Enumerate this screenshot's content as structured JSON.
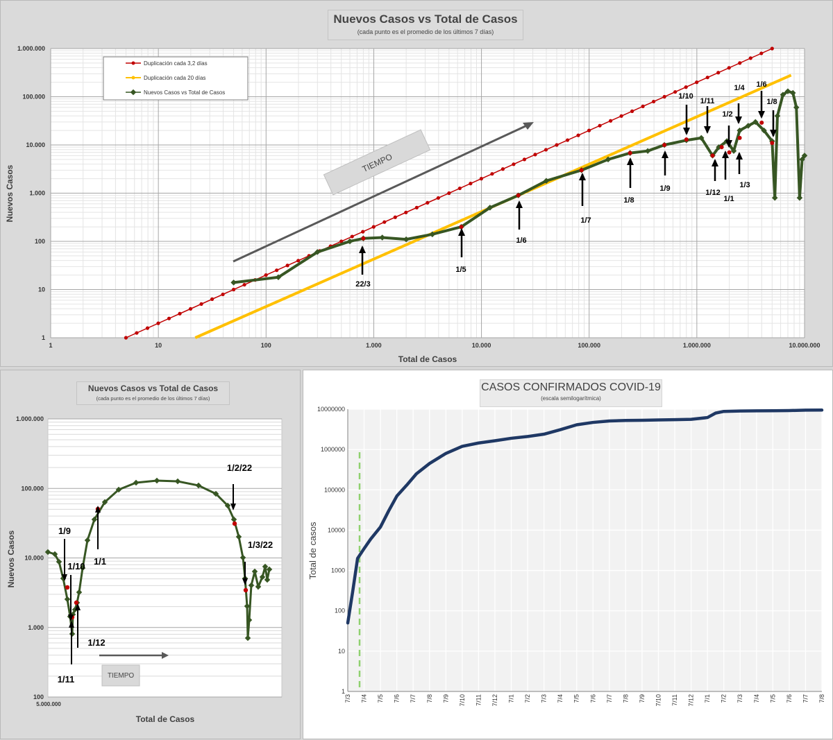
{
  "chart_data": [
    {
      "type": "line",
      "title": "Nuevos Casos vs Total de Casos",
      "subtitle": "(cada punto es el promedio de los últimos 7 días)",
      "xlabel": "Total de Casos",
      "ylabel": "Nuevos Casos",
      "xscale": "log",
      "yscale": "log",
      "xlim": [
        1,
        10000000
      ],
      "ylim": [
        1,
        1000000
      ],
      "x_ticks": [
        "1",
        "10",
        "100",
        "1.000",
        "10.000",
        "100.000",
        "1.000.000",
        "10.000.000"
      ],
      "y_ticks": [
        "1",
        "10",
        "100",
        "1.000",
        "10.000",
        "100.000",
        "1.000.000"
      ],
      "legend_position": "top-left",
      "series": [
        {
          "name": "Duplicación cada 3,2 días",
          "color": "#c00000",
          "x": [
            5,
            5000000
          ],
          "y": [
            1,
            1000000
          ]
        },
        {
          "name": "Duplicación cada 20 días",
          "color": "#ffc000",
          "x": [
            22,
            7500000
          ],
          "y": [
            1,
            280000
          ]
        },
        {
          "name": "Nuevos Casos vs Total de Casos",
          "color": "#375623",
          "x": [
            50,
            130,
            300,
            600,
            800,
            1200,
            2000,
            3500,
            6500,
            12000,
            22000,
            40000,
            85000,
            150000,
            240000,
            350000,
            500000,
            800000,
            1100000,
            1400000,
            1600000,
            1900000,
            2200000,
            2500000,
            3000000,
            3500000,
            4200000,
            5000000,
            5300000,
            5600000,
            6300000,
            7000000,
            7800000,
            8400000,
            9000000,
            9500000,
            10000000
          ],
          "y": [
            14,
            18,
            60,
            100,
            115,
            120,
            110,
            140,
            200,
            500,
            900,
            1800,
            3000,
            5000,
            6800,
            7500,
            10000,
            12500,
            14000,
            6000,
            9000,
            12000,
            7500,
            20000,
            25000,
            30000,
            20000,
            12000,
            800,
            40000,
            110000,
            130000,
            120000,
            60000,
            800,
            5000,
            6000
          ]
        },
        {
          "name": "",
          "color": "#375623",
          "x": [
            5000000
          ],
          "y": [
            500000
          ]
        }
      ],
      "annotations": [
        "22/3",
        "1/5",
        "1/6",
        "1/7",
        "1/8",
        "1/9",
        "1/10",
        "1/11",
        "1/12",
        "1/1",
        "1/2",
        "1/3",
        "1/4",
        "1/6",
        "1/8",
        "TIEMPO"
      ]
    },
    {
      "type": "line",
      "title": "Nuevos Casos vs Total de Casos",
      "subtitle": "(cada punto es el promedio de los últimos 7 días)",
      "xlabel": "Total de Casos",
      "ylabel": "Nuevos Casos",
      "yscale": "log",
      "ylim": [
        100,
        1000000
      ],
      "x_ticks": [
        "5.000.000"
      ],
      "y_ticks": [
        "100",
        "1.000",
        "10.000",
        "100.000",
        "1.000.000"
      ],
      "annotations": [
        "1/9",
        "1/10",
        "1/11",
        "1/12",
        "1/1",
        "1/2/22",
        "1/3/22",
        "TIEMPO"
      ]
    },
    {
      "type": "line",
      "title": "CASOS CONFIRMADOS COVID-19",
      "subtitle": "(escala semilogarítmica)",
      "ylabel": "Total de casos",
      "yscale": "log",
      "ylim": [
        1,
        10000000
      ],
      "y_ticks": [
        "1",
        "10",
        "100",
        "1000",
        "10000",
        "100000",
        "1000000",
        "10000000"
      ],
      "x_ticks": [
        "7/3",
        "7/4",
        "7/5",
        "7/6",
        "7/7",
        "7/8",
        "7/9",
        "7/10",
        "7/11",
        "7/12",
        "7/1",
        "7/2",
        "7/3",
        "7/4",
        "7/5",
        "7/6",
        "7/7",
        "7/8",
        "7/9",
        "7/10",
        "7/11",
        "7/12",
        "7/1",
        "7/2",
        "7/3",
        "7/4",
        "7/5",
        "7/6",
        "7/7",
        "7/8"
      ],
      "series": [
        {
          "name": "",
          "color": "#1f3864",
          "x": [
            0,
            0.3,
            0.6,
            1.0,
            1.4,
            2,
            2.5,
            3,
            3.6,
            4.2,
            5,
            6,
            7,
            8,
            9,
            10,
            11,
            12,
            13,
            14,
            15,
            16,
            17,
            18,
            19,
            20,
            21,
            22,
            22.5,
            23,
            24,
            25,
            26,
            27,
            28,
            29
          ],
          "y": [
            50,
            300,
            2000,
            3500,
            6000,
            12000,
            30000,
            70000,
            130000,
            250000,
            450000,
            800000,
            1200000,
            1450000,
            1650000,
            1900000,
            2100000,
            2400000,
            3100000,
            4100000,
            4700000,
            5100000,
            5250000,
            5300000,
            5400000,
            5500000,
            5600000,
            6200000,
            8000000,
            8800000,
            9000000,
            9100000,
            9150000,
            9250000,
            9450000,
            9500000
          ]
        }
      ]
    }
  ]
}
